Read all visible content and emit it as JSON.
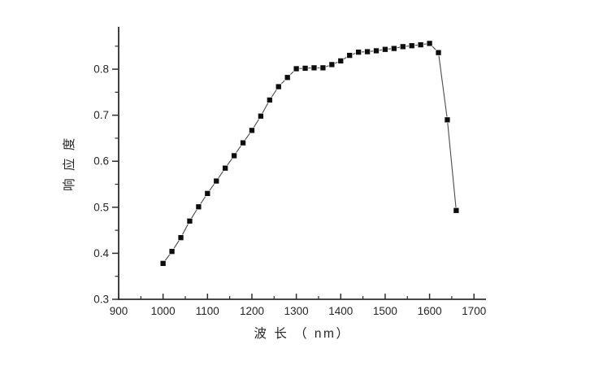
{
  "figure": {
    "background": "#ffffff"
  },
  "chart_data": {
    "type": "line",
    "marker": "filled-square",
    "title": "",
    "xlabel": "波 长 （ nm）",
    "ylabel": "响 应 度",
    "x": [
      1000,
      1020,
      1040,
      1060,
      1080,
      1100,
      1120,
      1140,
      1160,
      1180,
      1200,
      1220,
      1240,
      1260,
      1280,
      1300,
      1320,
      1340,
      1360,
      1380,
      1400,
      1420,
      1440,
      1460,
      1480,
      1500,
      1520,
      1540,
      1560,
      1580,
      1600,
      1620,
      1640,
      1660
    ],
    "y": [
      0.378,
      0.404,
      0.434,
      0.47,
      0.501,
      0.53,
      0.557,
      0.585,
      0.612,
      0.64,
      0.667,
      0.698,
      0.733,
      0.762,
      0.782,
      0.801,
      0.802,
      0.803,
      0.803,
      0.81,
      0.818,
      0.83,
      0.837,
      0.838,
      0.84,
      0.843,
      0.845,
      0.849,
      0.851,
      0.853,
      0.856,
      0.836,
      0.69,
      0.493
    ],
    "xlim": [
      900,
      1727
    ],
    "ylim": [
      0.3,
      0.892
    ],
    "x_major_ticks": [
      900,
      1000,
      1100,
      1200,
      1300,
      1400,
      1500,
      1600,
      1700
    ],
    "x_minor_ticks": [
      950,
      1050,
      1150,
      1250,
      1350,
      1450,
      1550,
      1650
    ],
    "y_major_ticks": [
      0.3,
      0.4,
      0.5,
      0.6,
      0.7,
      0.8
    ],
    "y_minor_ticks": [
      0.35,
      0.45,
      0.55,
      0.65,
      0.75,
      0.85
    ],
    "grid": false,
    "legend": null,
    "tick_direction": {
      "x": "in",
      "y": "out"
    },
    "colors": {
      "marker": "#0d0d0d",
      "line": "#4a4a4a",
      "axis": "#2e2e2e",
      "text": "#262626"
    }
  }
}
